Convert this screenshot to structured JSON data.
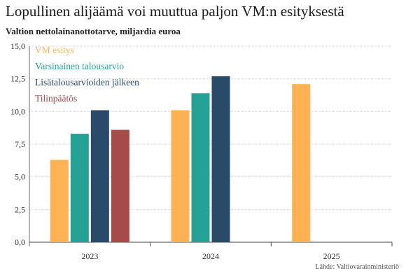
{
  "header": {
    "title": "Lopullinen alijäämä voi muuttua paljon VM:n esityksestä",
    "subtitle": "Valtion nettolainanottotarve, miljardia euroa"
  },
  "source": "Lähde: Valtiovarainministeriö",
  "chart_data": {
    "type": "bar",
    "categories": [
      "2023",
      "2024",
      "2025"
    ],
    "series": [
      {
        "name": "VM esitys",
        "color": "#ffb254",
        "values": [
          6.3,
          10.1,
          12.1
        ]
      },
      {
        "name": "Varsinainen talousarvio",
        "color": "#26a196",
        "values": [
          8.3,
          11.4,
          null
        ]
      },
      {
        "name": "Lisätalousarvioiden jälkeen",
        "color": "#2a4a69",
        "values": [
          10.1,
          12.7,
          null
        ]
      },
      {
        "name": "Tilinpäätös",
        "color": "#a64a4a",
        "values": [
          8.6,
          null,
          null
        ]
      }
    ],
    "yticks": [
      "0,0",
      "2,5",
      "5,0",
      "7,5",
      "10,0",
      "12,5",
      "15,0"
    ],
    "ylim": [
      0,
      15
    ],
    "grid": true,
    "legend_position": "top-left"
  }
}
